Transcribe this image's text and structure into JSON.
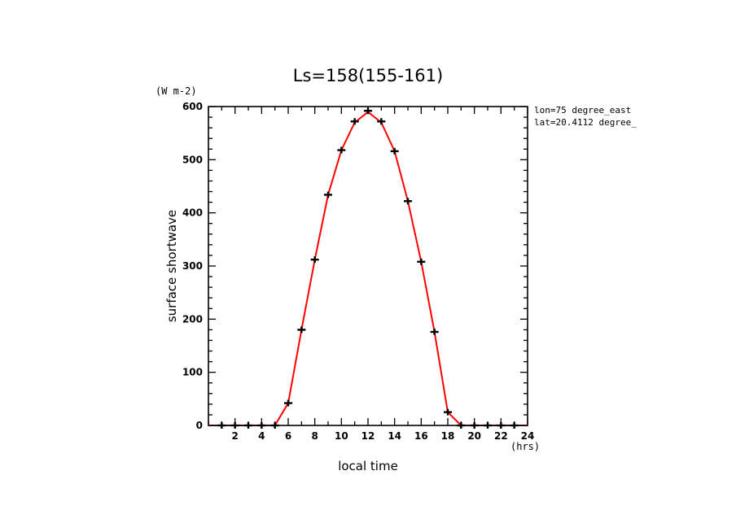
{
  "chart_data": {
    "type": "line",
    "title": "Ls=158(155-161)",
    "xlabel": "local time",
    "ylabel": "surface shortwave",
    "x_unit": "(hrs)",
    "y_unit": "(W m-2)",
    "xlim": [
      0,
      24
    ],
    "ylim": [
      0,
      600
    ],
    "xticks": [
      2,
      4,
      6,
      8,
      10,
      12,
      14,
      16,
      18,
      20,
      22,
      24
    ],
    "yticks": [
      0,
      100,
      200,
      300,
      400,
      500,
      600
    ],
    "grid": false,
    "annotations": [
      "lon=75 degree_east",
      "lat=20.4112 degree_"
    ],
    "colors": {
      "line": "#ff0000",
      "markers": "#000000",
      "axes": "#000000"
    },
    "series": [
      {
        "style": "line",
        "x": [
          0,
          1,
          2,
          3,
          4,
          5,
          6,
          7,
          8,
          9,
          10,
          11,
          12,
          13,
          14,
          15,
          16,
          17,
          18,
          19,
          20,
          21,
          22,
          23,
          24
        ],
        "values": [
          0,
          0,
          0,
          0,
          0,
          0,
          42,
          180,
          312,
          434,
          518,
          570,
          590,
          570,
          516,
          422,
          308,
          176,
          25,
          0,
          0,
          0,
          0,
          0,
          0
        ]
      },
      {
        "style": "markers",
        "x": [
          1,
          2,
          3,
          4,
          5,
          6,
          7,
          8,
          9,
          10,
          11,
          12,
          13,
          14,
          15,
          16,
          17,
          18,
          19,
          20,
          21,
          22,
          23
        ],
        "values": [
          0,
          0,
          0,
          0,
          0,
          42,
          180,
          312,
          434,
          518,
          572,
          592,
          572,
          516,
          422,
          308,
          176,
          25,
          0,
          0,
          0,
          0,
          0
        ]
      }
    ]
  }
}
